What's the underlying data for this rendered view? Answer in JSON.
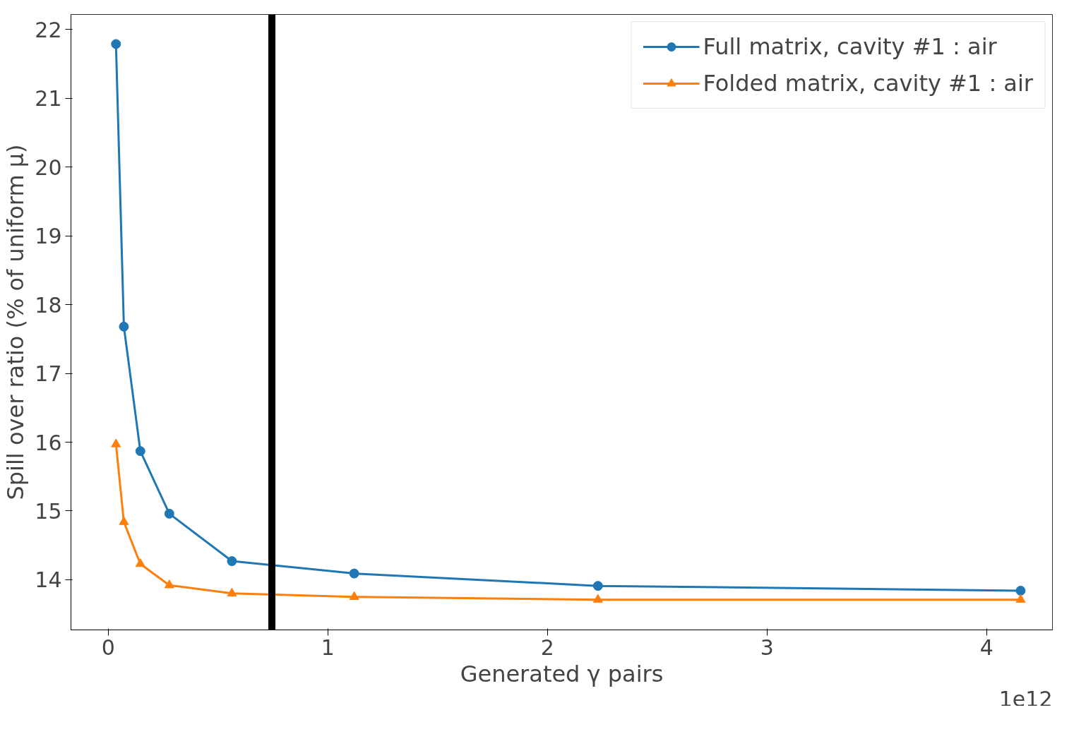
{
  "chart_data": {
    "type": "line",
    "xlabel": "Generated γ pairs",
    "ylabel": "Spill over ratio (% of uniform μ)",
    "xlim": [
      -0.17,
      4.3
    ],
    "xticks": [
      0,
      1,
      2,
      3,
      4
    ],
    "ylim": [
      13.27,
      22.22
    ],
    "yticks": [
      14,
      15,
      16,
      17,
      18,
      19,
      20,
      21,
      22
    ],
    "series": [
      {
        "name": "Full matrix, cavity #1 : air",
        "color": "#1f77b4",
        "marker": "circle",
        "x": [
          0.035,
          0.071,
          0.146,
          0.278,
          0.563,
          1.12,
          2.23,
          4.155
        ],
        "values": [
          21.79,
          17.68,
          15.87,
          14.96,
          14.27,
          14.09,
          13.91,
          13.84
        ]
      },
      {
        "name": "Folded matrix, cavity #1 : air",
        "color": "#ff7f0e",
        "marker": "triangle",
        "x": [
          0.035,
          0.071,
          0.146,
          0.278,
          0.563,
          1.12,
          2.23,
          4.155
        ],
        "values": [
          15.97,
          14.84,
          14.23,
          13.92,
          13.8,
          13.75,
          13.71,
          13.71
        ]
      }
    ],
    "ref_lines": [
      {
        "axis": "x",
        "value": 0.745,
        "color": "#000000"
      }
    ],
    "annotations": [
      "1e12"
    ],
    "legend": "top right",
    "grid": false
  }
}
